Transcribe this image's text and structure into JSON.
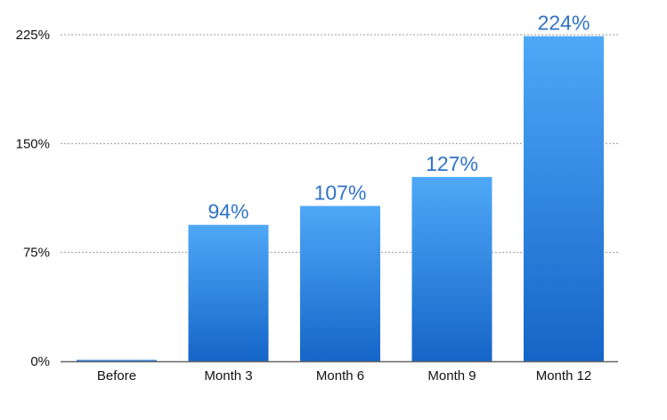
{
  "chart_data": {
    "type": "bar",
    "title": "",
    "xlabel": "",
    "ylabel": "",
    "categories": [
      "Before",
      "Month 3",
      "Month 6",
      "Month 9",
      "Month 12"
    ],
    "values": [
      1,
      94,
      107,
      127,
      224
    ],
    "data_labels": [
      "",
      "94%",
      "107%",
      "127%",
      "224%"
    ],
    "ylim": [
      0,
      225
    ],
    "yticks": [
      0,
      75,
      150,
      225
    ],
    "ytick_labels": [
      "0%",
      "75%",
      "150%",
      "225%"
    ],
    "grid": true,
    "legend": "none",
    "colors": {
      "bar_top": "#4fa8f7",
      "bar_bottom": "#1565c8",
      "data_label": "#2f73c9",
      "grid": "#9a9a9a",
      "axis": "#666666",
      "text": "#111111"
    }
  }
}
